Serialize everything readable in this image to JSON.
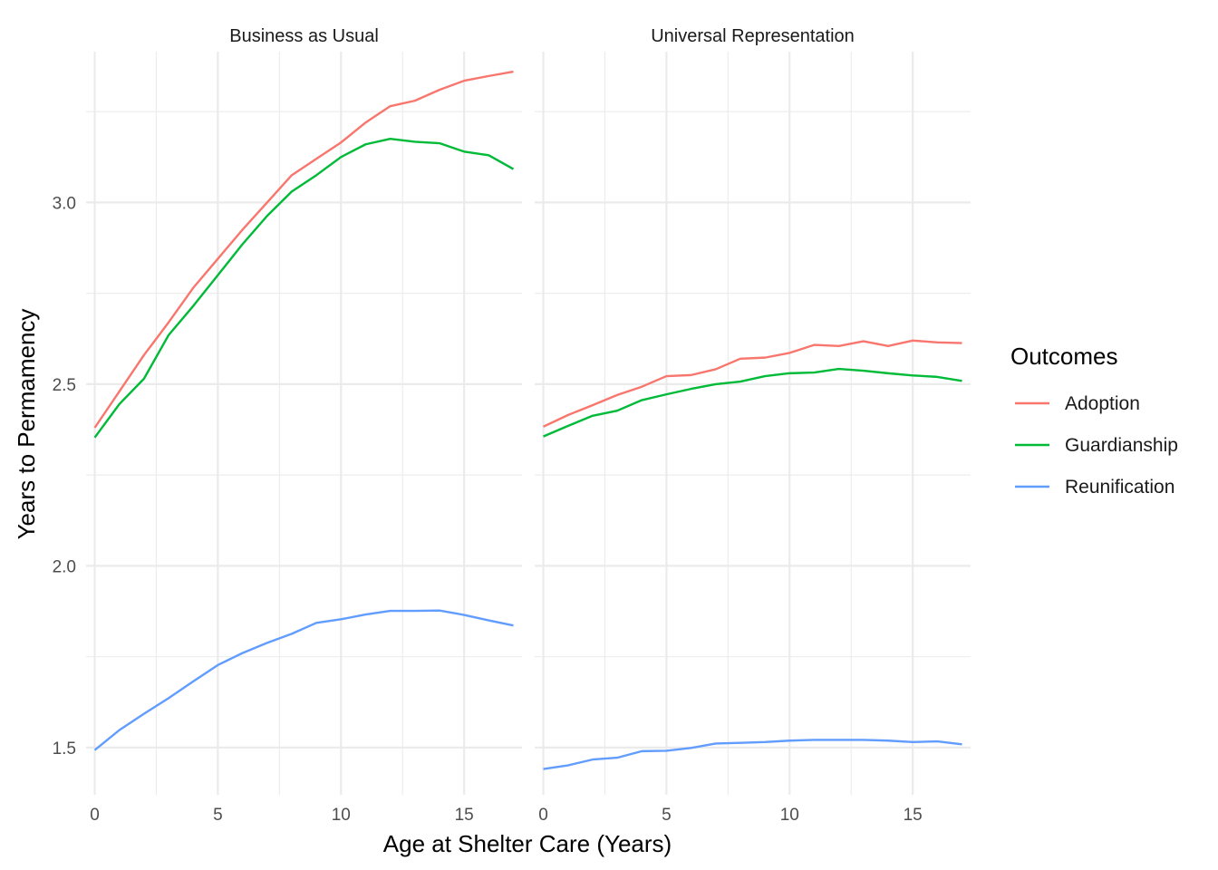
{
  "chart_data": {
    "type": "line",
    "xlabel": "Age at Shelter Care (Years)",
    "ylabel": "Years to Permamency",
    "xlim": [
      -0.35,
      17.35
    ],
    "ylim": [
      1.37,
      3.415
    ],
    "x_ticks": [
      0,
      5,
      10,
      15
    ],
    "y_ticks": [
      1.5,
      2.0,
      2.5,
      3.0
    ],
    "grid": true,
    "legend": {
      "title": "Outcomes",
      "position": "right",
      "entries": [
        {
          "name": "Adoption",
          "color": "#F8766D"
        },
        {
          "name": "Guardianship",
          "color": "#00BA38"
        },
        {
          "name": "Reunification",
          "color": "#619CFF"
        }
      ]
    },
    "x": [
      0,
      1,
      2,
      3,
      4,
      5,
      6,
      7,
      8,
      9,
      10,
      11,
      12,
      13,
      14,
      15,
      16,
      17
    ],
    "panels": [
      {
        "title": "Business as Usual",
        "series": [
          {
            "name": "Adoption",
            "color": "#F8766D",
            "values": [
              2.38,
              2.48,
              2.58,
              2.67,
              2.765,
              2.845,
              2.925,
              3.0,
              3.075,
              3.12,
              3.165,
              3.22,
              3.265,
              3.28,
              3.31,
              3.335,
              3.348,
              3.36
            ]
          },
          {
            "name": "Guardianship",
            "color": "#00BA38",
            "values": [
              2.353,
              2.445,
              2.515,
              2.635,
              2.715,
              2.8,
              2.885,
              2.963,
              3.03,
              3.075,
              3.125,
              3.16,
              3.175,
              3.167,
              3.163,
              3.14,
              3.13,
              3.092
            ]
          },
          {
            "name": "Reunification",
            "color": "#619CFF",
            "values": [
              1.493,
              1.548,
              1.593,
              1.636,
              1.682,
              1.727,
              1.76,
              1.788,
              1.813,
              1.843,
              1.853,
              1.866,
              1.876,
              1.876,
              1.877,
              1.865,
              1.85,
              1.836
            ]
          }
        ]
      },
      {
        "title": "Universal Representation",
        "series": [
          {
            "name": "Adoption",
            "color": "#F8766D",
            "values": [
              2.383,
              2.415,
              2.442,
              2.47,
              2.493,
              2.522,
              2.525,
              2.541,
              2.57,
              2.573,
              2.586,
              2.608,
              2.605,
              2.618,
              2.605,
              2.62,
              2.615,
              2.613
            ]
          },
          {
            "name": "Guardianship",
            "color": "#00BA38",
            "values": [
              2.356,
              2.385,
              2.413,
              2.427,
              2.456,
              2.472,
              2.487,
              2.5,
              2.507,
              2.522,
              2.53,
              2.532,
              2.542,
              2.537,
              2.53,
              2.524,
              2.52,
              2.509
            ]
          },
          {
            "name": "Reunification",
            "color": "#619CFF",
            "values": [
              1.441,
              1.451,
              1.467,
              1.472,
              1.49,
              1.491,
              1.499,
              1.511,
              1.513,
              1.515,
              1.519,
              1.521,
              1.521,
              1.521,
              1.519,
              1.515,
              1.517,
              1.509
            ]
          }
        ]
      }
    ]
  }
}
